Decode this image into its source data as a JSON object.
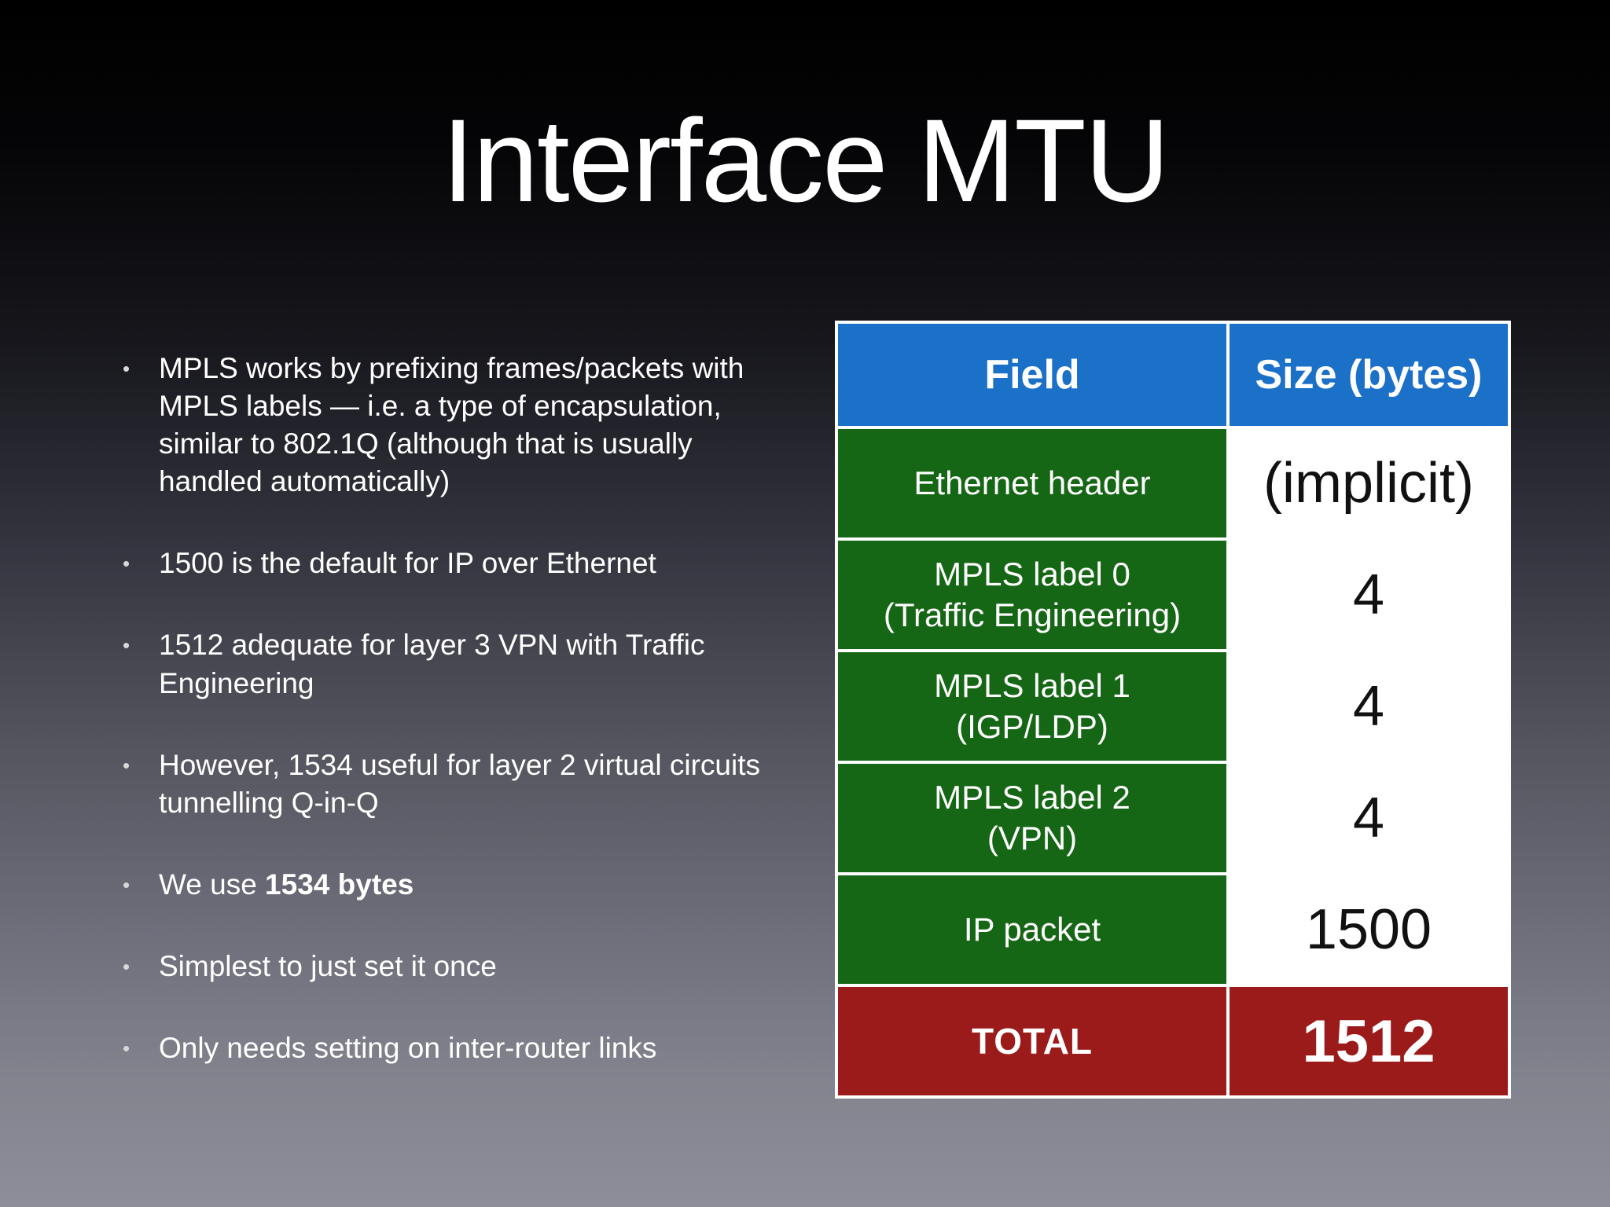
{
  "slide": {
    "title": "Interface MTU",
    "bullet_marker": "•",
    "bullets": [
      {
        "text": "MPLS works by prefixing frames/packets with MPLS labels — i.e. a type of encapsulation, similar to 802.1Q (although that is usually handled automatically)"
      },
      {
        "text": "1500 is the default for IP over Ethernet"
      },
      {
        "text": "1512 adequate for layer 3 VPN with Traffic Engineering"
      },
      {
        "text": "However, 1534 useful for layer 2 virtual circuits tunnelling Q-in-Q"
      },
      {
        "prefix": "We use ",
        "bold": "1534 bytes"
      },
      {
        "text": "Simplest to just set it once"
      },
      {
        "text": "Only needs setting on inter-router links"
      }
    ]
  },
  "table": {
    "header": {
      "field": "Field",
      "size": "Size (bytes)"
    },
    "rows": [
      {
        "field": "Ethernet header",
        "size": "(implicit)"
      },
      {
        "field": "MPLS label 0\n(Traffic Engineering)",
        "size": "4"
      },
      {
        "field": "MPLS label 1\n(IGP/LDP)",
        "size": "4"
      },
      {
        "field": "MPLS label 2\n(VPN)",
        "size": "4"
      },
      {
        "field": "IP packet",
        "size": "1500"
      }
    ],
    "total": {
      "label": "TOTAL",
      "value": "1512"
    }
  },
  "colors": {
    "table_header_bg": "#1b70c8",
    "table_field_bg": "#156615",
    "table_total_bg": "#9b1b1b",
    "grid_line": "#ffffff",
    "title_text": "#ffffff",
    "body_text": "#ffffff"
  }
}
